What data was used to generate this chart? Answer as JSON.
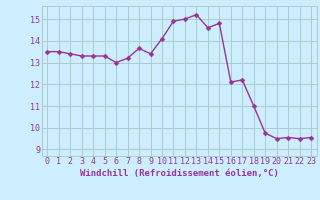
{
  "x": [
    0,
    1,
    2,
    3,
    4,
    5,
    6,
    7,
    8,
    9,
    10,
    11,
    12,
    13,
    14,
    15,
    16,
    17,
    18,
    19,
    20,
    21,
    22,
    23
  ],
  "y": [
    13.5,
    13.5,
    13.4,
    13.3,
    13.3,
    13.3,
    13.0,
    13.2,
    13.65,
    13.4,
    14.1,
    14.9,
    15.0,
    15.2,
    14.6,
    14.8,
    12.1,
    12.2,
    11.0,
    9.75,
    9.5,
    9.55,
    9.5,
    9.55
  ],
  "line_color": "#993399",
  "marker": "D",
  "markersize": 2.5,
  "linewidth": 1.0,
  "xlabel": "Windchill (Refroidissement éolien,°C)",
  "xlabel_fontsize": 6.5,
  "xtick_labels": [
    "0",
    "1",
    "2",
    "3",
    "4",
    "5",
    "6",
    "7",
    "8",
    "9",
    "10",
    "11",
    "12",
    "13",
    "14",
    "15",
    "16",
    "17",
    "18",
    "19",
    "20",
    "21",
    "22",
    "23"
  ],
  "ylim": [
    8.7,
    15.6
  ],
  "yticks": [
    9,
    10,
    11,
    12,
    13,
    14,
    15
  ],
  "bg_color": "#cceeff",
  "grid_color": "#aacccc",
  "tick_fontsize": 6.0
}
